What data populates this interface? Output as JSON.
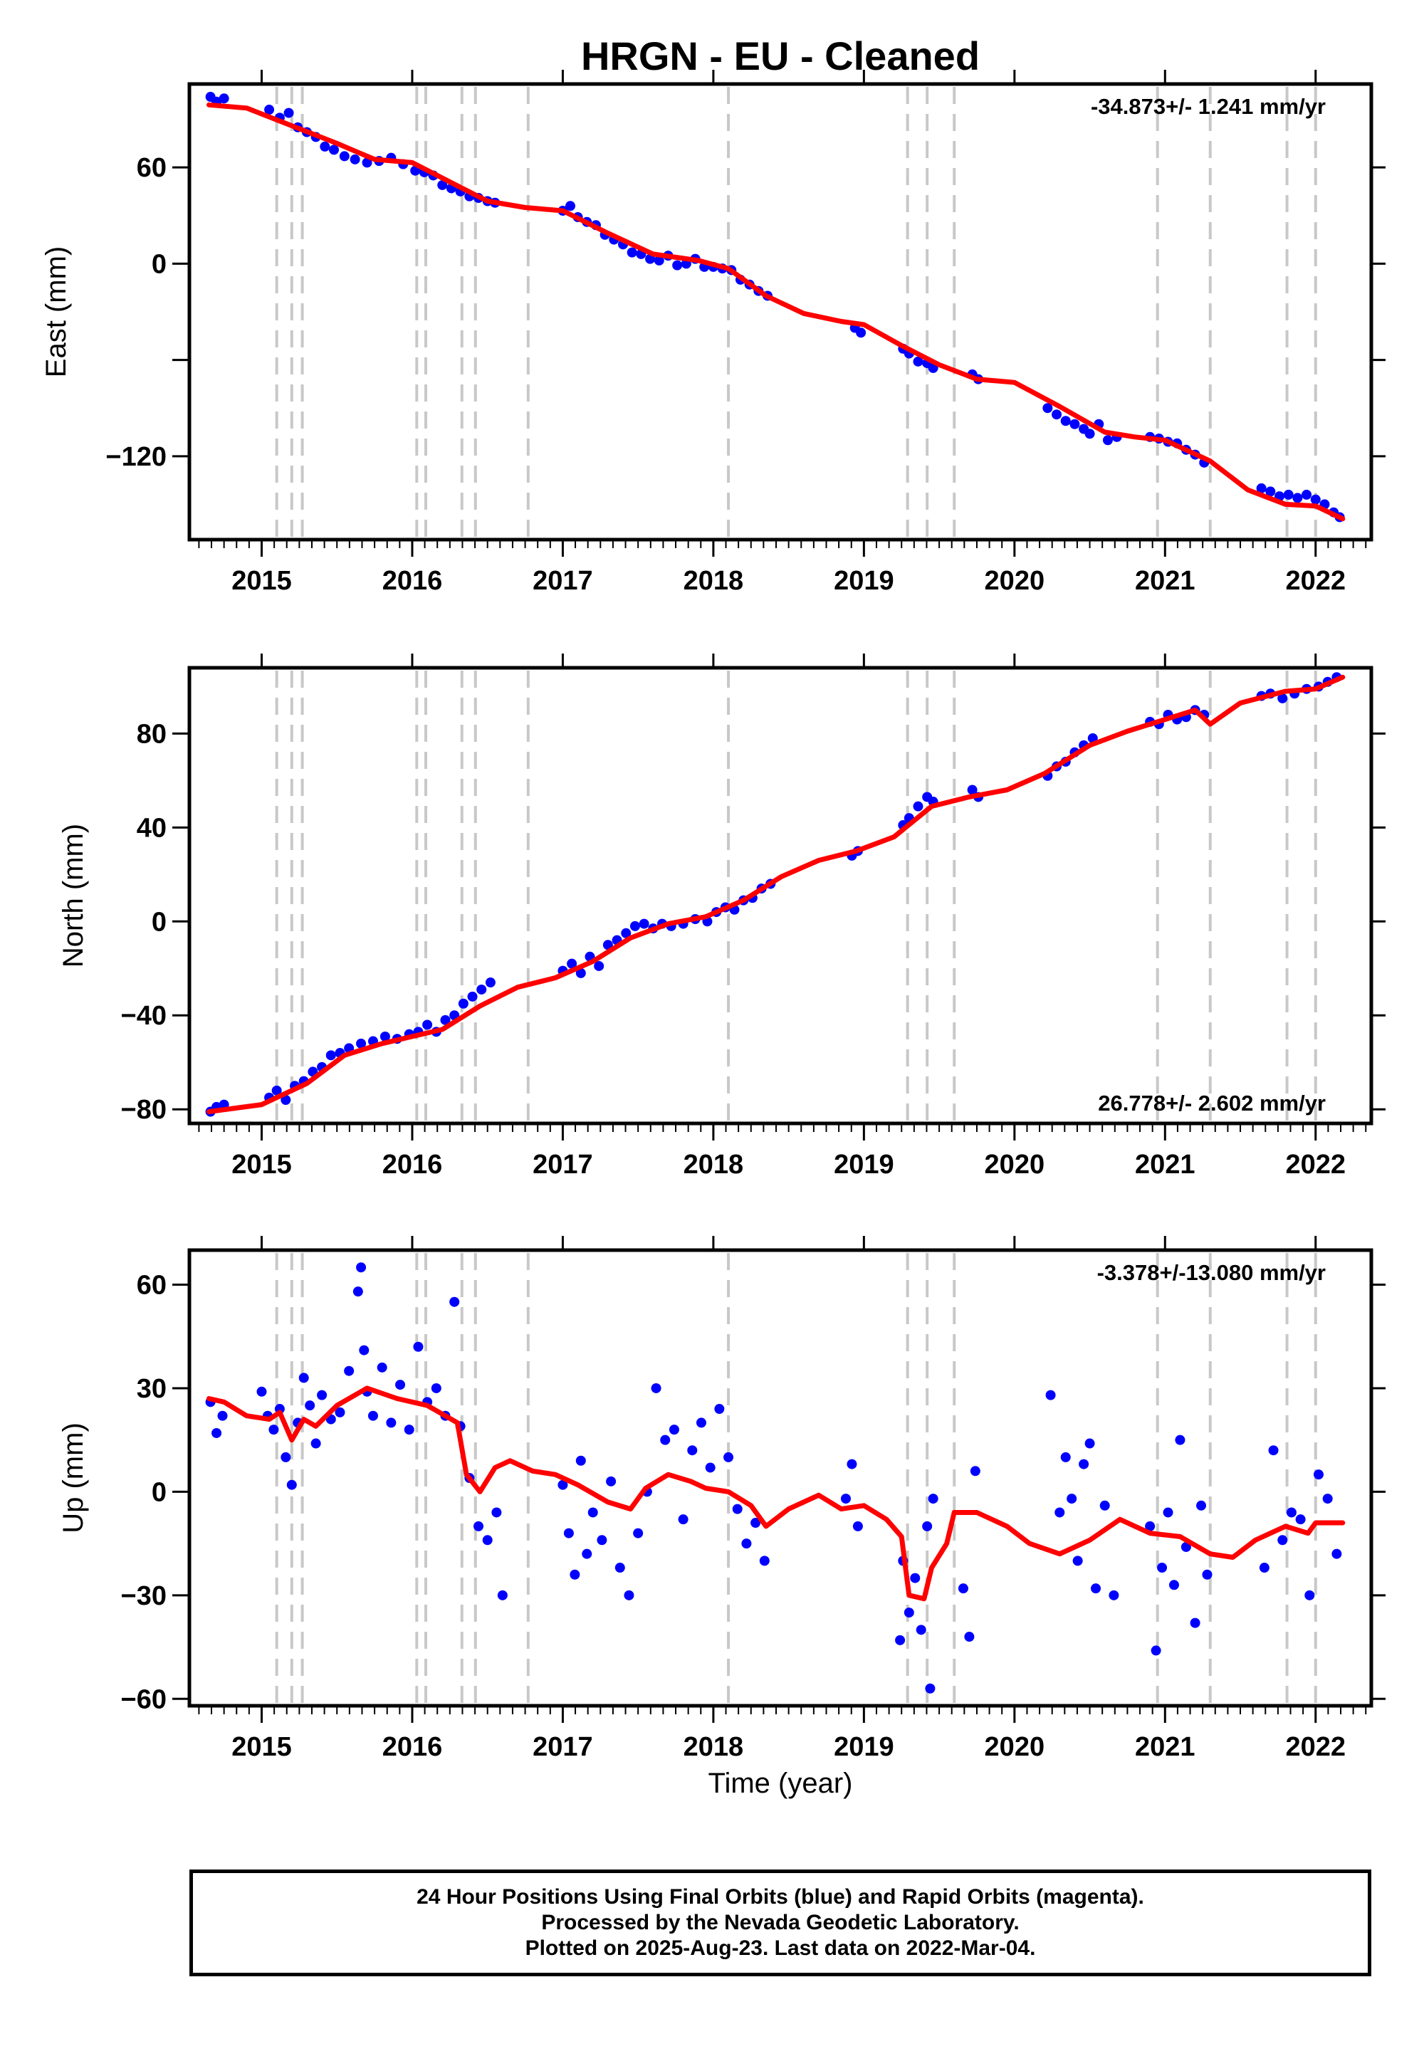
{
  "chart_data": {
    "type": "scatter",
    "title": "HRGN  - EU - Cleaned",
    "xlabel": "Time (year)",
    "x_range": [
      2014.52,
      2022.37
    ],
    "x_ticks": [
      "2015",
      "2016",
      "2017",
      "2018",
      "2019",
      "2020",
      "2021",
      "2022"
    ],
    "vlines": [
      2015.1,
      2015.2,
      2015.27,
      2016.03,
      2016.09,
      2016.33,
      2016.42,
      2016.77,
      2018.1,
      2019.29,
      2019.42,
      2019.6,
      2020.95,
      2021.3,
      2021.81,
      2022.0
    ],
    "colors": {
      "points": "#0000ff",
      "fit": "#ff0000",
      "vlines": "#c8c8c8"
    },
    "panels": [
      {
        "ylabel": "East (mm)",
        "ylim": [
          -172,
          112
        ],
        "yticks": [
          "60",
          "0",
          "−120"
        ],
        "ytick_values": [
          60,
          0,
          -120
        ],
        "yticks_unlabeled": [
          -60
        ],
        "rate": "-34.873+/- 1.241 mm/yr",
        "rate_position": "top-right",
        "fit": [
          [
            2014.65,
            99
          ],
          [
            2014.9,
            97
          ],
          [
            2015.2,
            86
          ],
          [
            2015.5,
            75
          ],
          [
            2015.75,
            65
          ],
          [
            2016.0,
            63
          ],
          [
            2016.25,
            51
          ],
          [
            2016.5,
            39
          ],
          [
            2016.75,
            35
          ],
          [
            2017.0,
            33
          ],
          [
            2017.3,
            19
          ],
          [
            2017.6,
            6
          ],
          [
            2017.9,
            2
          ],
          [
            2018.1,
            -3
          ],
          [
            2018.35,
            -20
          ],
          [
            2018.6,
            -31
          ],
          [
            2018.85,
            -36
          ],
          [
            2019.0,
            -38
          ],
          [
            2019.25,
            -51
          ],
          [
            2019.5,
            -63
          ],
          [
            2019.75,
            -72
          ],
          [
            2020.0,
            -74
          ],
          [
            2020.3,
            -89
          ],
          [
            2020.6,
            -105
          ],
          [
            2020.8,
            -108
          ],
          [
            2021.0,
            -110
          ],
          [
            2021.3,
            -123
          ],
          [
            2021.55,
            -141
          ],
          [
            2021.8,
            -150
          ],
          [
            2022.0,
            -151
          ],
          [
            2022.18,
            -159
          ]
        ],
        "points_x": [
          2014.66,
          2014.7,
          2014.75,
          2015.05,
          2015.12,
          2015.18,
          2015.24,
          2015.3,
          2015.36,
          2015.42,
          2015.48,
          2015.55,
          2015.62,
          2015.7,
          2015.78,
          2015.86,
          2015.94,
          2016.02,
          2016.08,
          2016.14,
          2016.2,
          2016.26,
          2016.32,
          2016.38,
          2016.44,
          2016.5,
          2016.55,
          2017.0,
          2017.05,
          2017.1,
          2017.16,
          2017.22,
          2017.28,
          2017.34,
          2017.4,
          2017.46,
          2017.52,
          2017.58,
          2017.64,
          2017.7,
          2017.76,
          2017.82,
          2017.88,
          2017.94,
          2018.0,
          2018.06,
          2018.12,
          2018.18,
          2018.24,
          2018.3,
          2018.36,
          2018.94,
          2018.98,
          2019.26,
          2019.3,
          2019.36,
          2019.42,
          2019.46,
          2019.72,
          2019.76,
          2020.22,
          2020.28,
          2020.34,
          2020.4,
          2020.46,
          2020.5,
          2020.56,
          2020.62,
          2020.68,
          2020.9,
          2020.96,
          2021.02,
          2021.08,
          2021.14,
          2021.2,
          2021.26,
          2021.64,
          2021.7,
          2021.76,
          2021.82,
          2021.88,
          2021.94,
          2022.0,
          2022.06,
          2022.12,
          2022.16
        ],
        "points_y": [
          104,
          101,
          103,
          96,
          91,
          94,
          85,
          82,
          79,
          73,
          71,
          67,
          65,
          63,
          64,
          66,
          62,
          58,
          57,
          55,
          49,
          47,
          45,
          42,
          41,
          39,
          38,
          33,
          36,
          29,
          26,
          24,
          18,
          15,
          12,
          7,
          6,
          3,
          2,
          5,
          -1,
          0,
          3,
          -2,
          -2,
          -3,
          -4,
          -10,
          -13,
          -17,
          -20,
          -40,
          -43,
          -53,
          -56,
          -61,
          -62,
          -65,
          -69,
          -72,
          -90,
          -94,
          -98,
          -100,
          -103,
          -106,
          -100,
          -110,
          -108,
          -108,
          -109,
          -111,
          -112,
          -116,
          -119,
          -124,
          -140,
          -142,
          -145,
          -144,
          -146,
          -144,
          -147,
          -150,
          -155,
          -158
        ]
      },
      {
        "ylabel": "North (mm)",
        "ylim": [
          -86,
          108
        ],
        "yticks": [
          "80",
          "40",
          "0",
          "−40",
          "−80"
        ],
        "ytick_values": [
          80,
          40,
          0,
          -40,
          -80
        ],
        "rate": "26.778+/- 2.602 mm/yr",
        "rate_position": "bottom-right",
        "fit": [
          [
            2014.65,
            -81
          ],
          [
            2015.0,
            -78
          ],
          [
            2015.3,
            -69
          ],
          [
            2015.55,
            -57
          ],
          [
            2015.8,
            -52
          ],
          [
            2016.0,
            -49
          ],
          [
            2016.2,
            -46
          ],
          [
            2016.45,
            -36
          ],
          [
            2016.7,
            -28
          ],
          [
            2016.95,
            -24
          ],
          [
            2017.2,
            -17
          ],
          [
            2017.45,
            -7
          ],
          [
            2017.7,
            -1
          ],
          [
            2017.95,
            2
          ],
          [
            2018.2,
            9
          ],
          [
            2018.45,
            19
          ],
          [
            2018.7,
            26
          ],
          [
            2018.95,
            30
          ],
          [
            2019.2,
            36
          ],
          [
            2019.45,
            49
          ],
          [
            2019.7,
            53
          ],
          [
            2019.95,
            56
          ],
          [
            2020.2,
            63
          ],
          [
            2020.5,
            75
          ],
          [
            2020.75,
            81
          ],
          [
            2021.0,
            86
          ],
          [
            2021.2,
            90
          ],
          [
            2021.3,
            84
          ],
          [
            2021.5,
            93
          ],
          [
            2021.8,
            98
          ],
          [
            2022.0,
            99
          ],
          [
            2022.18,
            104
          ]
        ],
        "points_x": [
          2014.66,
          2014.7,
          2014.75,
          2015.05,
          2015.1,
          2015.16,
          2015.22,
          2015.28,
          2015.34,
          2015.4,
          2015.46,
          2015.52,
          2015.58,
          2015.66,
          2015.74,
          2015.82,
          2015.9,
          2015.98,
          2016.04,
          2016.1,
          2016.16,
          2016.22,
          2016.28,
          2016.34,
          2016.4,
          2016.46,
          2016.52,
          2017.0,
          2017.06,
          2017.12,
          2017.18,
          2017.24,
          2017.3,
          2017.36,
          2017.42,
          2017.48,
          2017.54,
          2017.6,
          2017.66,
          2017.72,
          2017.8,
          2017.88,
          2017.96,
          2018.02,
          2018.08,
          2018.14,
          2018.2,
          2018.26,
          2018.32,
          2018.38,
          2018.92,
          2018.96,
          2019.26,
          2019.3,
          2019.36,
          2019.42,
          2019.46,
          2019.72,
          2019.76,
          2020.22,
          2020.28,
          2020.34,
          2020.4,
          2020.46,
          2020.52,
          2020.9,
          2020.96,
          2021.02,
          2021.08,
          2021.14,
          2021.2,
          2021.26,
          2021.64,
          2021.7,
          2021.78,
          2021.86,
          2021.94,
          2022.02,
          2022.08,
          2022.14
        ],
        "points_y": [
          -81,
          -79,
          -78,
          -75,
          -72,
          -76,
          -70,
          -68,
          -64,
          -62,
          -57,
          -56,
          -54,
          -52,
          -51,
          -49,
          -50,
          -48,
          -47,
          -44,
          -47,
          -42,
          -40,
          -35,
          -32,
          -29,
          -26,
          -21,
          -18,
          -22,
          -15,
          -19,
          -10,
          -8,
          -5,
          -2,
          -1,
          -3,
          -1,
          -2,
          -1,
          1,
          0,
          4,
          6,
          5,
          9,
          10,
          14,
          16,
          28,
          30,
          41,
          44,
          49,
          53,
          51,
          56,
          53,
          62,
          66,
          68,
          72,
          75,
          78,
          85,
          84,
          88,
          86,
          87,
          90,
          88,
          96,
          97,
          95,
          97,
          99,
          100,
          102,
          104
        ]
      },
      {
        "ylabel": "Up (mm)",
        "ylim": [
          -62,
          70
        ],
        "yticks": [
          "60",
          "30",
          "0",
          "−30",
          "−60"
        ],
        "ytick_values": [
          60,
          30,
          0,
          -30,
          -60
        ],
        "rate": "-3.378+/-13.080 mm/yr",
        "rate_position": "top-right",
        "fit": [
          [
            2014.65,
            27
          ],
          [
            2014.75,
            26
          ],
          [
            2014.9,
            22
          ],
          [
            2015.05,
            21
          ],
          [
            2015.12,
            23
          ],
          [
            2015.2,
            15
          ],
          [
            2015.28,
            21
          ],
          [
            2015.36,
            19
          ],
          [
            2015.5,
            25
          ],
          [
            2015.7,
            30
          ],
          [
            2015.9,
            27
          ],
          [
            2016.1,
            25
          ],
          [
            2016.3,
            20
          ],
          [
            2016.36,
            5
          ],
          [
            2016.45,
            0
          ],
          [
            2016.55,
            7
          ],
          [
            2016.65,
            9
          ],
          [
            2016.8,
            6
          ],
          [
            2016.95,
            5
          ],
          [
            2017.1,
            2
          ],
          [
            2017.3,
            -3
          ],
          [
            2017.45,
            -5
          ],
          [
            2017.55,
            1
          ],
          [
            2017.7,
            5
          ],
          [
            2017.85,
            3
          ],
          [
            2017.95,
            1
          ],
          [
            2018.1,
            0
          ],
          [
            2018.25,
            -4
          ],
          [
            2018.35,
            -10
          ],
          [
            2018.5,
            -5
          ],
          [
            2018.7,
            -1
          ],
          [
            2018.85,
            -5
          ],
          [
            2019.0,
            -4
          ],
          [
            2019.15,
            -8
          ],
          [
            2019.25,
            -13
          ],
          [
            2019.3,
            -30
          ],
          [
            2019.4,
            -31
          ],
          [
            2019.45,
            -22
          ],
          [
            2019.55,
            -15
          ],
          [
            2019.6,
            -6
          ],
          [
            2019.75,
            -6
          ],
          [
            2019.95,
            -10
          ],
          [
            2020.1,
            -15
          ],
          [
            2020.3,
            -18
          ],
          [
            2020.5,
            -14
          ],
          [
            2020.7,
            -8
          ],
          [
            2020.9,
            -12
          ],
          [
            2021.1,
            -13
          ],
          [
            2021.3,
            -18
          ],
          [
            2021.45,
            -19
          ],
          [
            2021.6,
            -14
          ],
          [
            2021.8,
            -10
          ],
          [
            2021.95,
            -12
          ],
          [
            2022.0,
            -9
          ],
          [
            2022.18,
            -9
          ]
        ],
        "points_x": [
          2014.66,
          2014.7,
          2014.74,
          2015.0,
          2015.04,
          2015.08,
          2015.12,
          2015.16,
          2015.2,
          2015.24,
          2015.28,
          2015.32,
          2015.36,
          2015.4,
          2015.46,
          2015.52,
          2015.58,
          2015.64,
          2015.66,
          2015.68,
          2015.7,
          2015.74,
          2015.8,
          2015.86,
          2015.92,
          2015.98,
          2016.04,
          2016.1,
          2016.16,
          2016.22,
          2016.28,
          2016.32,
          2016.38,
          2016.44,
          2016.5,
          2016.56,
          2016.6,
          2017.0,
          2017.04,
          2017.08,
          2017.12,
          2017.16,
          2017.2,
          2017.26,
          2017.32,
          2017.38,
          2017.44,
          2017.5,
          2017.56,
          2017.62,
          2017.68,
          2017.74,
          2017.8,
          2017.86,
          2017.92,
          2017.98,
          2018.04,
          2018.1,
          2018.16,
          2018.22,
          2018.28,
          2018.34,
          2018.88,
          2018.92,
          2018.96,
          2019.24,
          2019.26,
          2019.3,
          2019.34,
          2019.38,
          2019.42,
          2019.44,
          2019.46,
          2019.66,
          2019.7,
          2019.74,
          2020.24,
          2020.3,
          2020.34,
          2020.38,
          2020.42,
          2020.46,
          2020.5,
          2020.54,
          2020.6,
          2020.66,
          2020.9,
          2020.94,
          2020.98,
          2021.02,
          2021.06,
          2021.1,
          2021.14,
          2021.2,
          2021.24,
          2021.28,
          2021.66,
          2021.72,
          2021.78,
          2021.84,
          2021.9,
          2021.96,
          2022.02,
          2022.08,
          2022.14
        ],
        "points_y": [
          26,
          17,
          22,
          29,
          22,
          18,
          24,
          10,
          2,
          20,
          33,
          25,
          14,
          28,
          21,
          23,
          35,
          58,
          65,
          41,
          29,
          22,
          36,
          20,
          31,
          18,
          42,
          26,
          30,
          22,
          55,
          19,
          4,
          -10,
          -14,
          -6,
          -30,
          2,
          -12,
          -24,
          9,
          -18,
          -6,
          -14,
          3,
          -22,
          -30,
          -12,
          0,
          30,
          15,
          18,
          -8,
          12,
          20,
          7,
          24,
          10,
          -5,
          -15,
          -9,
          -20,
          -2,
          8,
          -10,
          -43,
          -20,
          -35,
          -25,
          -40,
          -10,
          -57,
          -2,
          -28,
          -42,
          6,
          28,
          -6,
          10,
          -2,
          -20,
          8,
          14,
          -28,
          -4,
          -30,
          -10,
          -46,
          -22,
          -6,
          -27,
          15,
          -16,
          -38,
          -4,
          -24,
          -22,
          12,
          -14,
          -6,
          -8,
          -30,
          5,
          -2,
          -18
        ]
      }
    ]
  },
  "footer": {
    "line1": "24 Hour Positions Using Final Orbits (blue) and Rapid Orbits (magenta).",
    "line2": "Processed by the Nevada Geodetic Laboratory.",
    "line3": "Plotted on 2025-Aug-23. Last data on 2022-Mar-04."
  }
}
